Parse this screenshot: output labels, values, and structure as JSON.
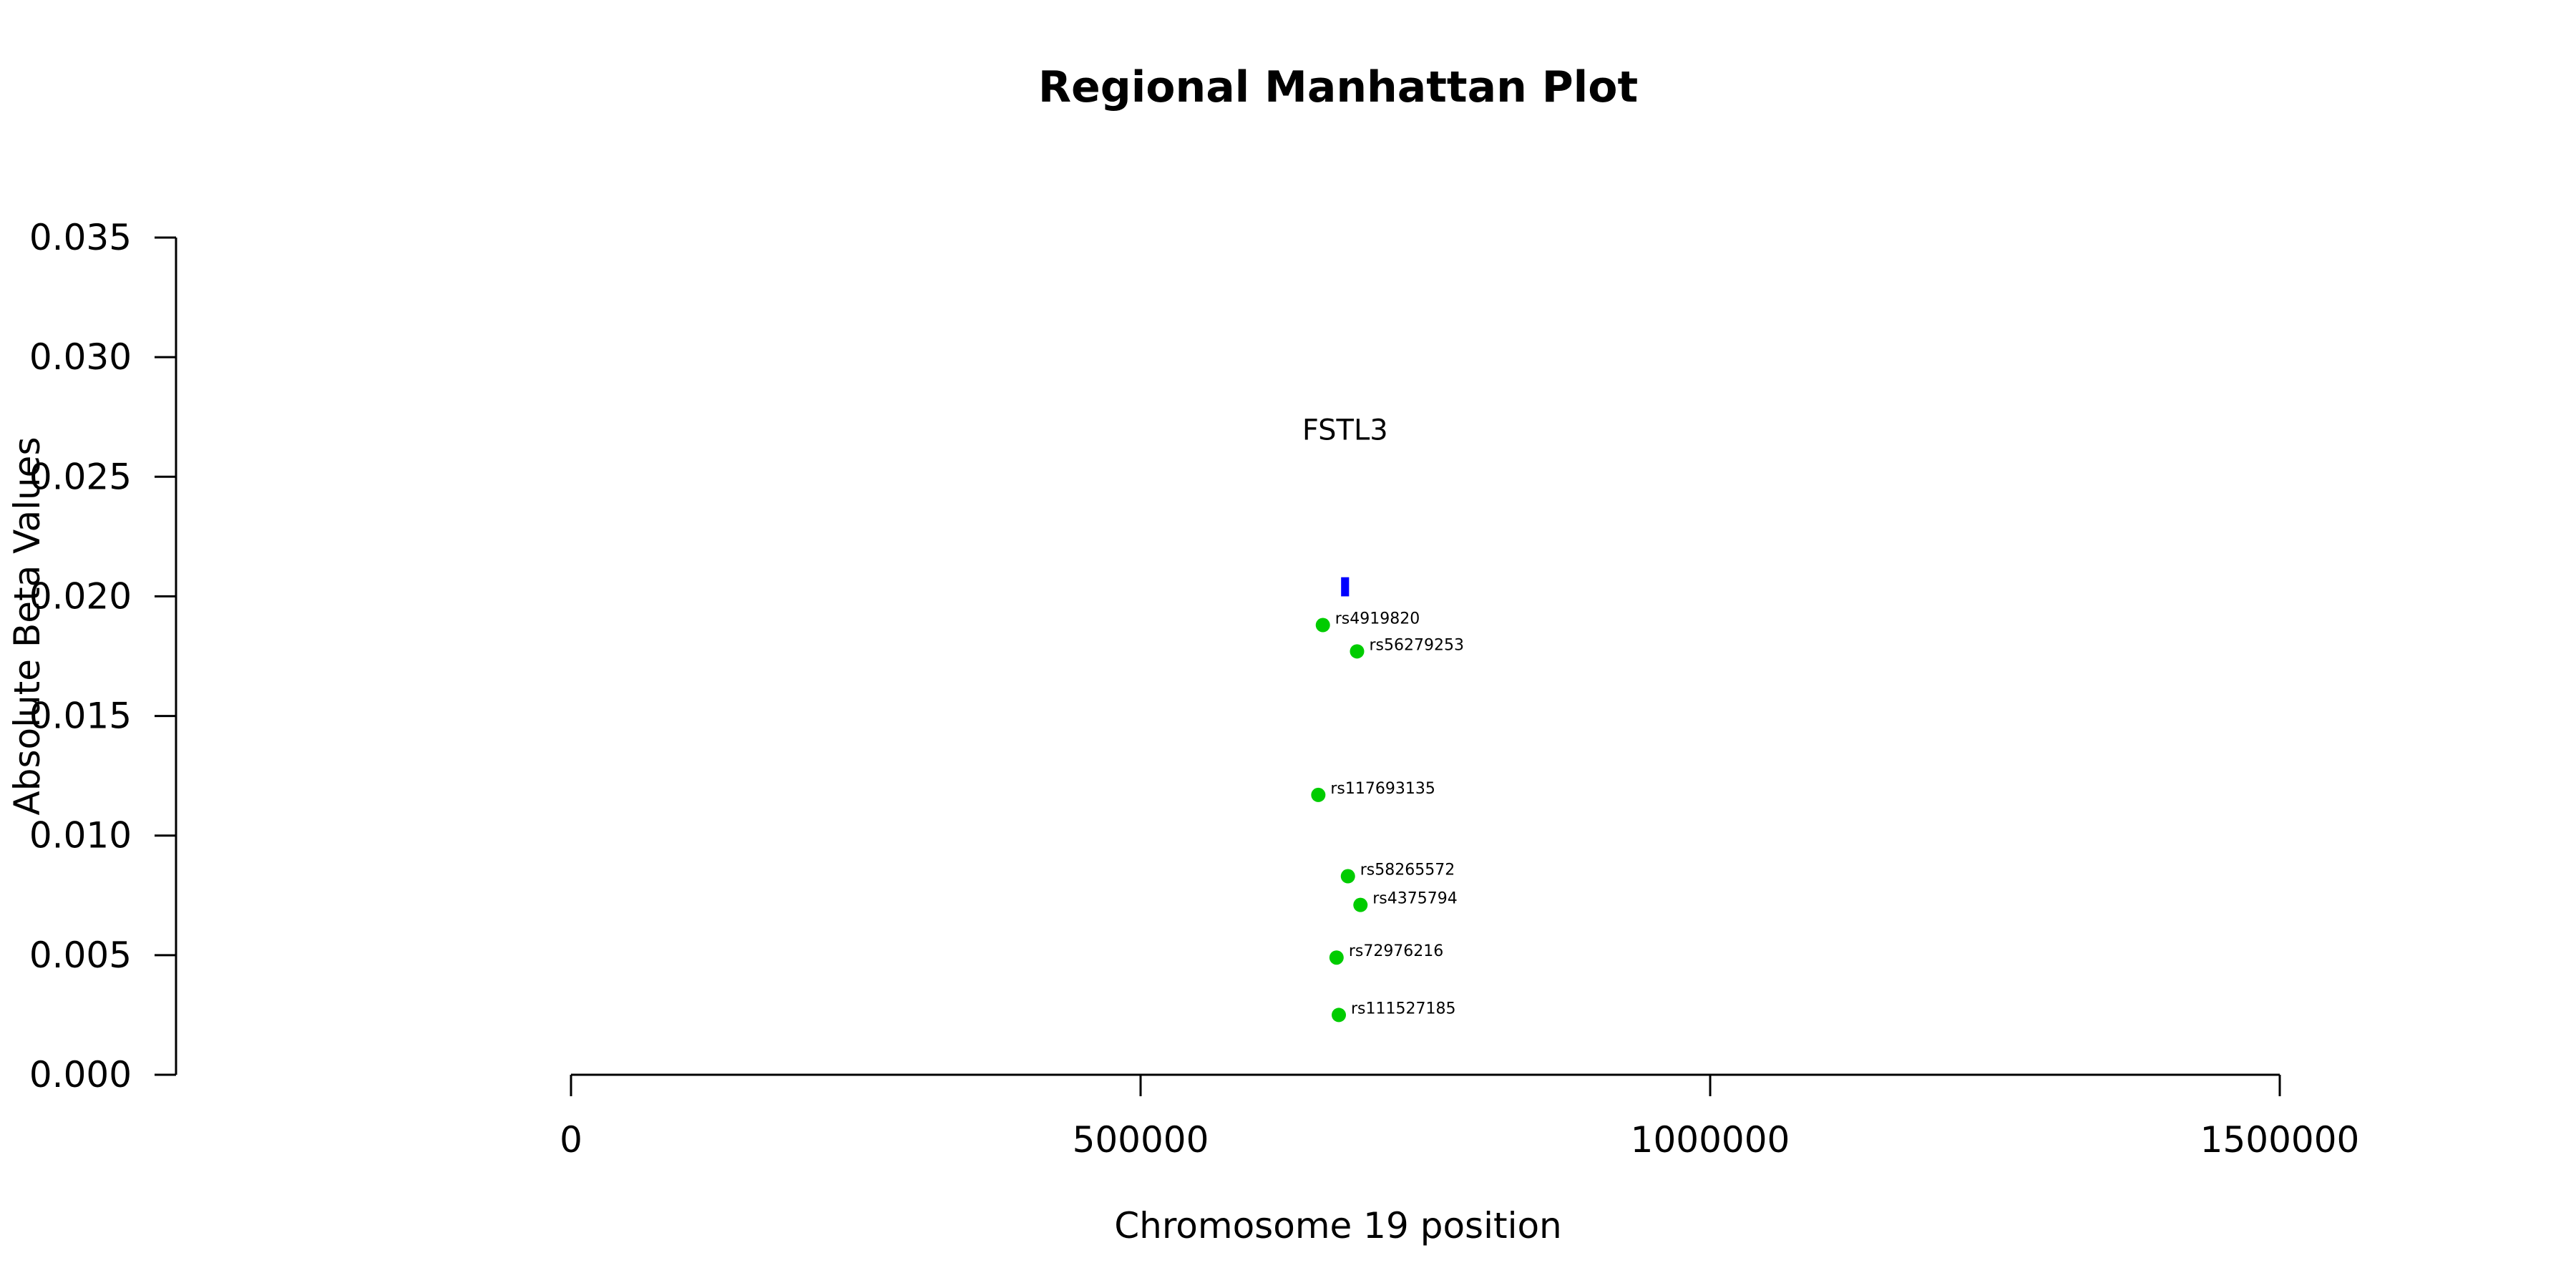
{
  "chart_data": {
    "type": "scatter",
    "title": "Regional Manhattan Plot",
    "xlabel": "Chromosome 19 position",
    "ylabel": "Absolute Beta Values",
    "xlim": [
      0,
      1500000
    ],
    "ylim": [
      0,
      0.035
    ],
    "x_ticks": [
      "0",
      "500000",
      "1000000",
      "1500000"
    ],
    "y_ticks": [
      "0.000",
      "0.005",
      "0.010",
      "0.015",
      "0.020",
      "0.025",
      "0.030",
      "0.035"
    ],
    "gene": {
      "name": "FSTL3",
      "start": 676000,
      "end": 683000,
      "y_bottom": 0.02,
      "y_top": 0.0208,
      "label_y": 0.027,
      "color": "#0000ff"
    },
    "point_color": "#00cc00",
    "points": [
      {
        "id": "rs4919820",
        "x": 660000,
        "y": 0.0188
      },
      {
        "id": "rs56279253",
        "x": 690000,
        "y": 0.0177
      },
      {
        "id": "rs117693135",
        "x": 656000,
        "y": 0.0117
      },
      {
        "id": "rs58265572",
        "x": 682000,
        "y": 0.0083
      },
      {
        "id": "rs4375794",
        "x": 693000,
        "y": 0.0071
      },
      {
        "id": "rs72976216",
        "x": 672000,
        "y": 0.0049
      },
      {
        "id": "rs111527185",
        "x": 674000,
        "y": 0.0025
      }
    ]
  }
}
